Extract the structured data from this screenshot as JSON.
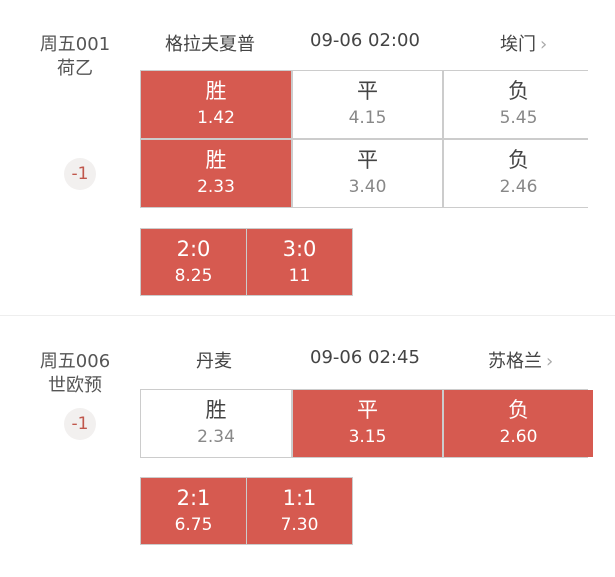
{
  "colors": {
    "selected": "#d65a50",
    "handicap": "#c0574c"
  },
  "matches": [
    {
      "id": "周五001",
      "league": "荷乙",
      "home": "格拉夫夏普",
      "time": "09-06 02:00",
      "away": "埃门",
      "handicap": "-1",
      "rows": [
        [
          {
            "label": "胜",
            "odds": "1.42",
            "selected": true
          },
          {
            "label": "平",
            "odds": "4.15",
            "selected": false
          },
          {
            "label": "负",
            "odds": "5.45",
            "selected": false
          }
        ],
        [
          {
            "label": "胜",
            "odds": "2.33",
            "selected": true
          },
          {
            "label": "平",
            "odds": "3.40",
            "selected": false
          },
          {
            "label": "负",
            "odds": "2.46",
            "selected": false
          }
        ]
      ],
      "scores": [
        {
          "label": "2:0",
          "odds": "8.25"
        },
        {
          "label": "3:0",
          "odds": "11"
        }
      ]
    },
    {
      "id": "周五006",
      "league": "世欧预",
      "home": "丹麦",
      "time": "09-06 02:45",
      "away": "苏格兰",
      "handicap": "-1",
      "rows": [
        [
          {
            "label": "胜",
            "odds": "2.34",
            "selected": false
          },
          {
            "label": "平",
            "odds": "3.15",
            "selected": true
          },
          {
            "label": "负",
            "odds": "2.60",
            "selected": true
          }
        ]
      ],
      "scores": [
        {
          "label": "2:1",
          "odds": "6.75"
        },
        {
          "label": "1:1",
          "odds": "7.30"
        }
      ]
    }
  ],
  "icons": {
    "chevron": "chevron-right-icon"
  }
}
